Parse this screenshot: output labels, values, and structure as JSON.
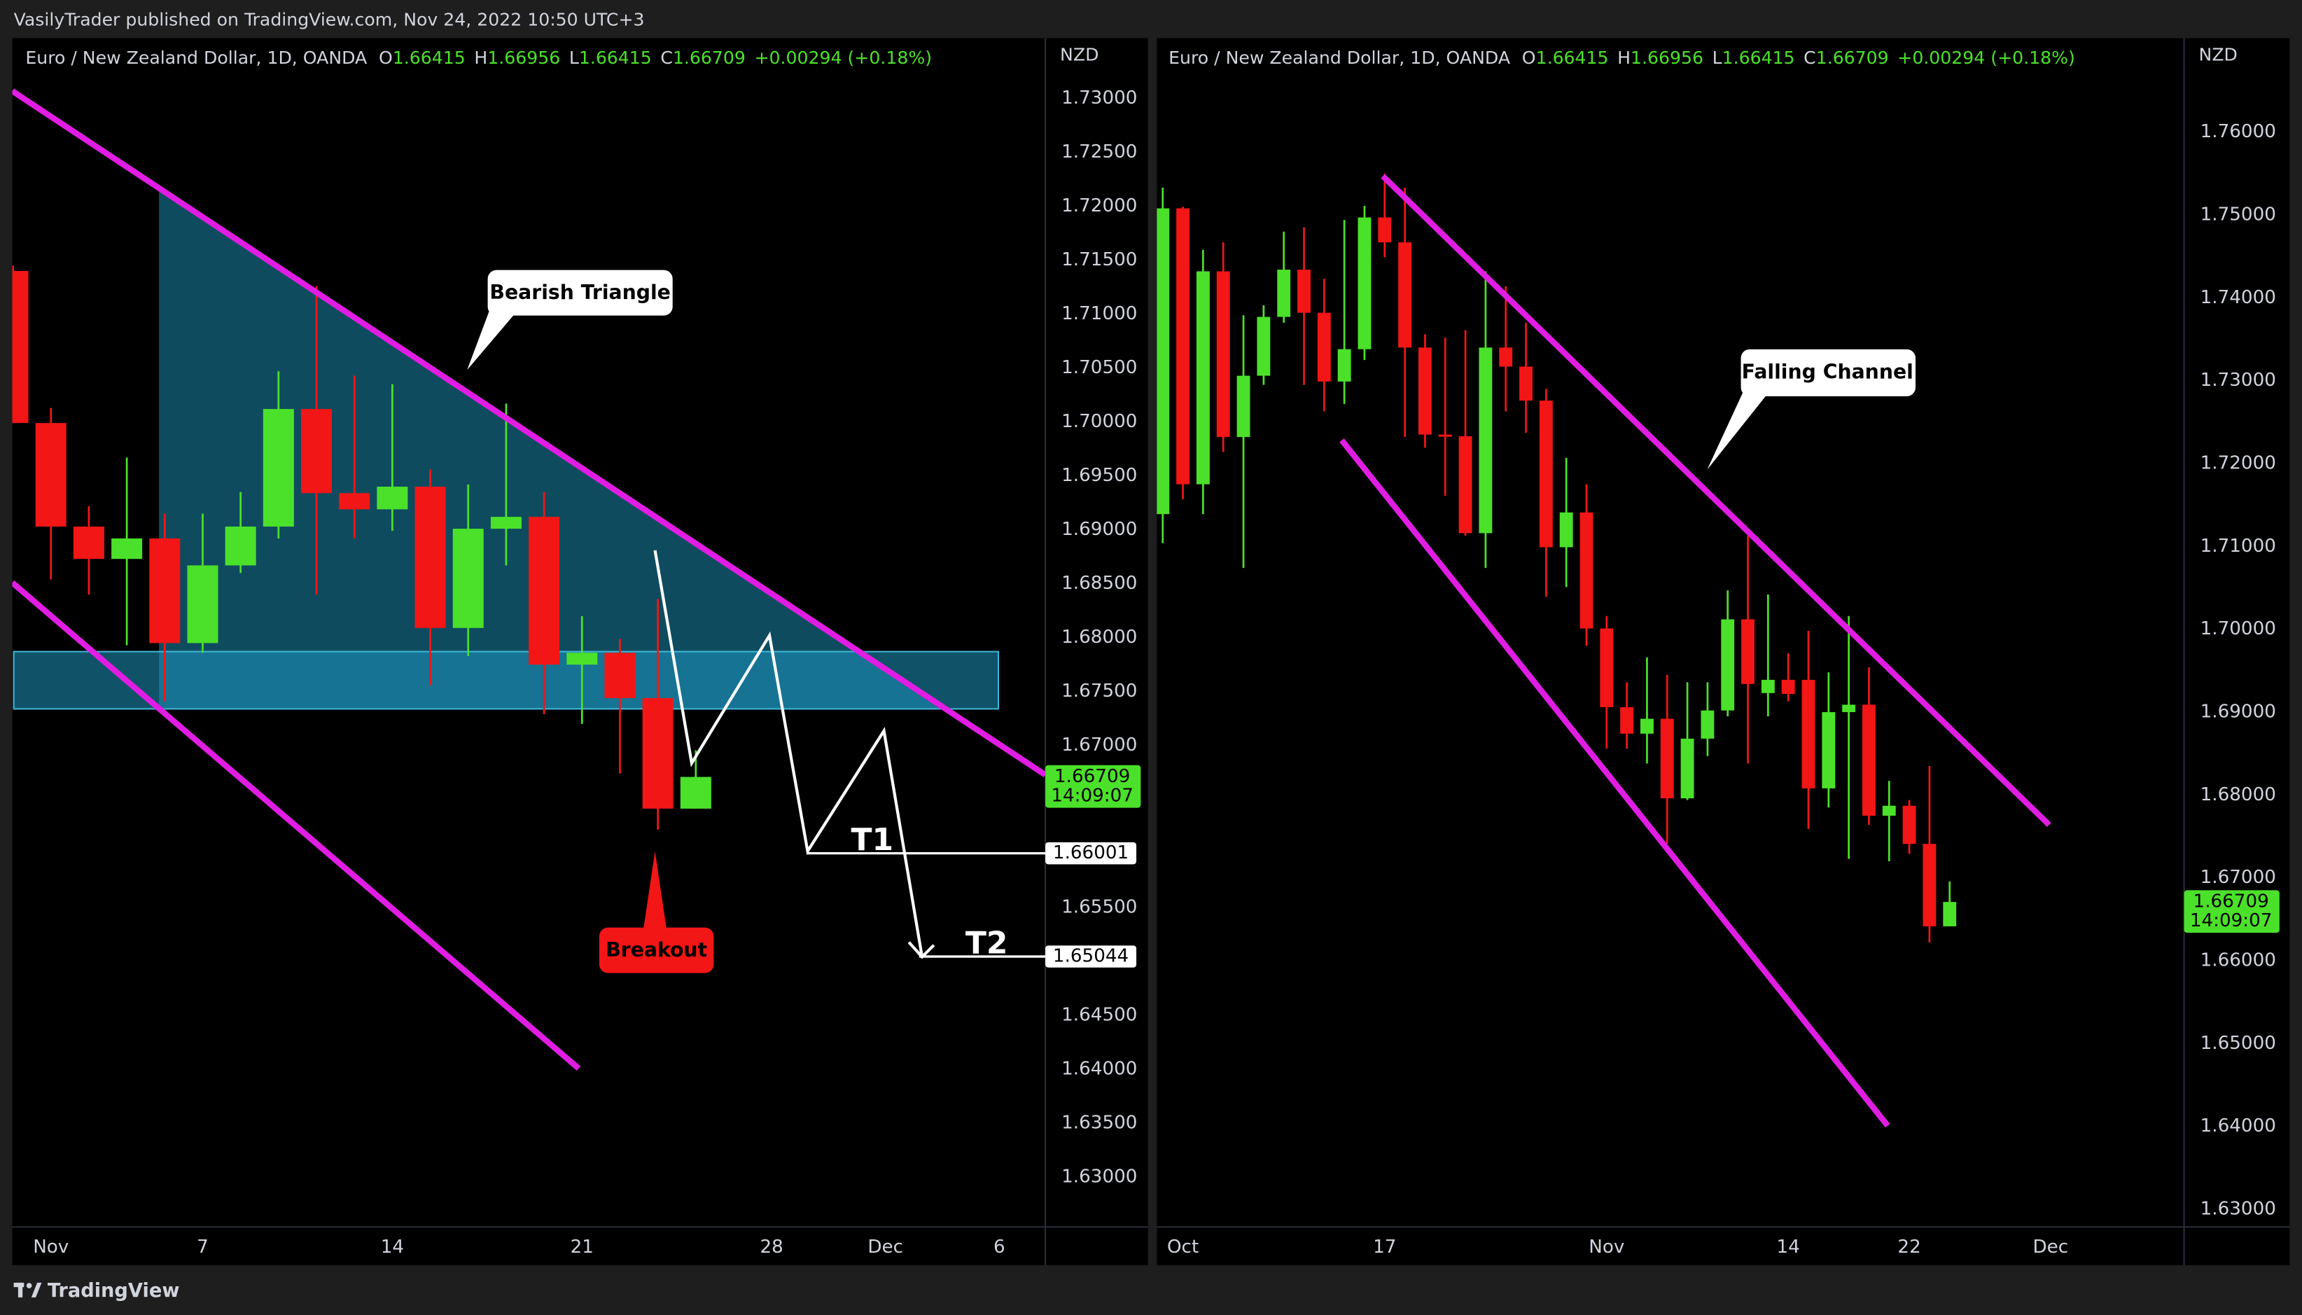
{
  "header": {
    "text": "VasilyTrader published on TradingView.com, Nov 24, 2022 10:50 UTC+3"
  },
  "footer": {
    "brand": "TradingView"
  },
  "chart_data": [
    {
      "type": "candlestick",
      "symbol": "Euro / New Zealand Dollar, 1D, OANDA",
      "legend": {
        "o_label": "O",
        "open": 1.66415,
        "h_label": "H",
        "high": 1.66956,
        "l_label": "L",
        "low": 1.66415,
        "c_label": "C",
        "close": 1.66709,
        "change": "+0.00294 (+0.18%)"
      },
      "currency": "NZD",
      "up_color": "#4be12a",
      "down_color": "#f21616",
      "grid": false,
      "categories": [
        null,
        "Nov",
        null,
        null,
        null,
        "7",
        null,
        null,
        null,
        null,
        "14",
        null,
        null,
        null,
        null,
        "21",
        null,
        null,
        null,
        null,
        "28",
        null,
        null,
        "Dec",
        null,
        null,
        "6"
      ],
      "open": [
        1.714,
        1.6999,
        1.6903,
        1.6873,
        1.6892,
        1.6795,
        1.6867,
        1.6903,
        1.7012,
        1.6934,
        1.6919,
        1.694,
        1.6809,
        1.6901,
        1.6912,
        1.6775,
        1.6786,
        1.6744,
        1.66415,
        null,
        null,
        null,
        null,
        null,
        null,
        null,
        null
      ],
      "high": [
        1.7145,
        1.7013,
        1.6922,
        1.6967,
        1.6915,
        1.6915,
        1.6935,
        1.7047,
        1.7126,
        1.7043,
        1.7035,
        1.6956,
        1.6942,
        1.7017,
        1.6935,
        1.682,
        1.6799,
        1.6836,
        1.66956,
        null,
        null,
        null,
        null,
        null,
        null,
        null,
        null
      ],
      "low": [
        1.6999,
        1.6854,
        1.684,
        1.6793,
        1.6741,
        1.6786,
        1.686,
        1.6892,
        1.684,
        1.6892,
        1.6899,
        1.6756,
        1.6783,
        1.6867,
        1.6729,
        1.672,
        1.6674,
        1.6622,
        1.66415,
        null,
        null,
        null,
        null,
        null,
        null,
        null,
        null
      ],
      "close": [
        1.6999,
        1.6903,
        1.6873,
        1.6892,
        1.6795,
        1.6867,
        1.6903,
        1.7012,
        1.6934,
        1.6919,
        1.694,
        1.6809,
        1.6901,
        1.6912,
        1.6775,
        1.6786,
        1.6744,
        1.66415,
        1.66709,
        null,
        null,
        null,
        null,
        null,
        null,
        null,
        null
      ],
      "ylim": [
        1.62537,
        1.73558
      ],
      "yticks": [
        {
          "value": 1.73,
          "label": "1.73000"
        },
        {
          "value": 1.725,
          "label": "1.72500"
        },
        {
          "value": 1.72,
          "label": "1.72000"
        },
        {
          "value": 1.715,
          "label": "1.71500"
        },
        {
          "value": 1.71,
          "label": "1.71000"
        },
        {
          "value": 1.705,
          "label": "1.70500"
        },
        {
          "value": 1.7,
          "label": "1.70000"
        },
        {
          "value": 1.695,
          "label": "1.69500"
        },
        {
          "value": 1.69,
          "label": "1.69000"
        },
        {
          "value": 1.685,
          "label": "1.68500"
        },
        {
          "value": 1.68,
          "label": "1.68000"
        },
        {
          "value": 1.675,
          "label": "1.67500"
        },
        {
          "value": 1.67,
          "label": "1.67000"
        },
        {
          "value": 1.655,
          "label": "1.65500"
        },
        {
          "value": 1.645,
          "label": "1.64500"
        },
        {
          "value": 1.64,
          "label": "1.64000"
        },
        {
          "value": 1.635,
          "label": "1.63500"
        },
        {
          "value": 1.63,
          "label": "1.63000"
        }
      ],
      "last_price": {
        "value": 1.66709,
        "countdown": "14:09:07"
      },
      "targets": [
        {
          "label": "T1",
          "value": 1.66001
        },
        {
          "label": "T2",
          "value": 1.65044
        }
      ],
      "annotations": [
        "Bearish Triangle",
        "Breakout"
      ]
    },
    {
      "type": "candlestick",
      "symbol": "Euro / New Zealand Dollar, 1D, OANDA",
      "legend": {
        "o_label": "O",
        "open": 1.66415,
        "h_label": "H",
        "high": 1.66956,
        "l_label": "L",
        "low": 1.66415,
        "c_label": "C",
        "close": 1.66709,
        "change": "+0.00294 (+0.18%)"
      },
      "currency": "NZD",
      "up_color": "#4be12a",
      "down_color": "#f21616",
      "grid": false,
      "categories": [
        null,
        "Oct",
        null,
        null,
        null,
        null,
        null,
        null,
        null,
        null,
        null,
        "17",
        null,
        null,
        null,
        null,
        null,
        null,
        null,
        null,
        null,
        null,
        "Nov",
        null,
        null,
        null,
        null,
        null,
        null,
        null,
        null,
        "14",
        null,
        null,
        null,
        null,
        null,
        "22",
        null,
        null,
        null,
        null,
        null,
        null,
        "Dec"
      ],
      "open": [
        1.7139,
        1.7508,
        1.7175,
        1.7432,
        1.7232,
        1.7306,
        1.7377,
        1.7434,
        1.7382,
        1.7299,
        1.7338,
        1.7497,
        1.7467,
        1.734,
        1.7235,
        1.7233,
        1.7116,
        1.734,
        1.7317,
        1.7276,
        1.7099,
        1.7141,
        1.7001,
        1.6906,
        1.6874,
        1.6892,
        1.6796,
        1.6868,
        1.6902,
        1.7012,
        1.6923,
        1.6939,
        1.6939,
        1.6808,
        1.69,
        1.6909,
        1.6775,
        1.6787,
        1.6741,
        1.66415,
        null,
        null,
        null,
        null,
        null
      ],
      "high": [
        1.7533,
        1.751,
        1.7458,
        1.7467,
        1.7379,
        1.7391,
        1.748,
        1.7485,
        1.7423,
        1.7494,
        1.7511,
        1.755,
        1.7533,
        1.7356,
        1.7352,
        1.7361,
        1.7432,
        1.7414,
        1.737,
        1.729,
        1.7207,
        1.7175,
        1.7016,
        1.6936,
        1.6966,
        1.6945,
        1.6936,
        1.6936,
        1.7047,
        1.7113,
        1.7042,
        1.6971,
        1.6998,
        1.6948,
        1.7016,
        1.6954,
        1.6817,
        1.6794,
        1.6835,
        1.66956,
        null,
        null,
        null,
        null,
        null
      ],
      "low": [
        1.7104,
        1.7157,
        1.7139,
        1.7214,
        1.7074,
        1.7295,
        1.737,
        1.7295,
        1.7263,
        1.7272,
        1.7325,
        1.7449,
        1.7232,
        1.7219,
        1.7161,
        1.7113,
        1.7074,
        1.7263,
        1.7237,
        1.7039,
        1.7051,
        1.698,
        1.6856,
        1.6856,
        1.6838,
        1.6741,
        1.6794,
        1.6847,
        1.6895,
        1.6838,
        1.6895,
        1.6913,
        1.6759,
        1.6785,
        1.6723,
        1.6764,
        1.672,
        1.6729,
        1.6622,
        1.66415,
        null,
        null,
        null,
        null,
        null
      ],
      "close": [
        1.7508,
        1.7175,
        1.7432,
        1.7232,
        1.7306,
        1.7377,
        1.7434,
        1.7382,
        1.7299,
        1.7338,
        1.7497,
        1.7467,
        1.734,
        1.7235,
        1.7233,
        1.7116,
        1.734,
        1.7317,
        1.7276,
        1.7099,
        1.7141,
        1.7001,
        1.6906,
        1.6874,
        1.6892,
        1.6796,
        1.6868,
        1.6902,
        1.7012,
        1.6934,
        1.6939,
        1.6922,
        1.6808,
        1.69,
        1.6909,
        1.6775,
        1.6787,
        1.6741,
        1.66415,
        1.66709,
        null,
        null,
        null,
        null,
        null
      ],
      "ylim": [
        1.62787,
        1.77134
      ],
      "yticks": [
        {
          "value": 1.76,
          "label": "1.76000"
        },
        {
          "value": 1.75,
          "label": "1.75000"
        },
        {
          "value": 1.74,
          "label": "1.74000"
        },
        {
          "value": 1.73,
          "label": "1.73000"
        },
        {
          "value": 1.72,
          "label": "1.72000"
        },
        {
          "value": 1.71,
          "label": "1.71000"
        },
        {
          "value": 1.7,
          "label": "1.70000"
        },
        {
          "value": 1.69,
          "label": "1.69000"
        },
        {
          "value": 1.68,
          "label": "1.68000"
        },
        {
          "value": 1.67,
          "label": "1.67000"
        },
        {
          "value": 1.66,
          "label": "1.66000"
        },
        {
          "value": 1.65,
          "label": "1.65000"
        },
        {
          "value": 1.64,
          "label": "1.64000"
        },
        {
          "value": 1.63,
          "label": "1.63000"
        }
      ],
      "last_price": {
        "value": 1.66709,
        "countdown": "14:09:07"
      },
      "targets": [],
      "annotations": [
        "Falling Channel"
      ]
    }
  ]
}
